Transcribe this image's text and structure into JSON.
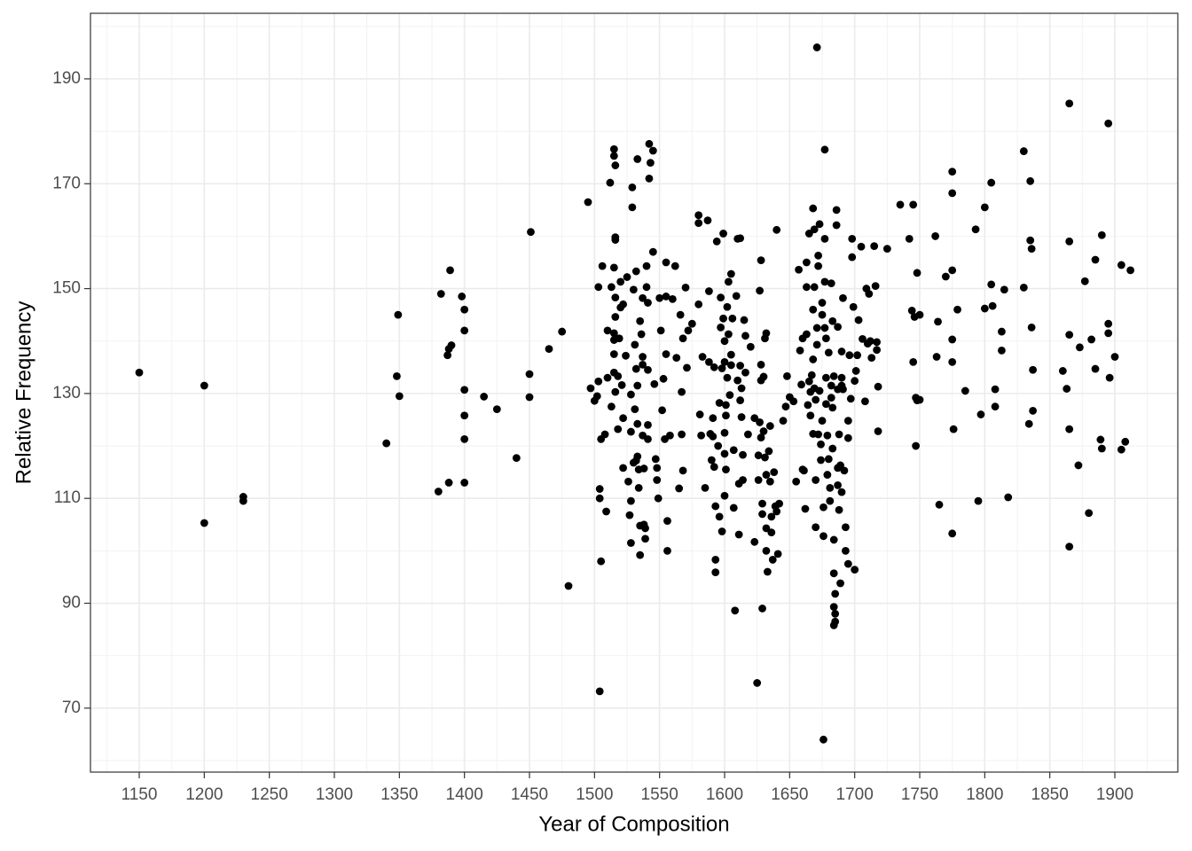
{
  "chart_data": {
    "type": "scatter",
    "x_label": "Year of Composition",
    "y_label": "Relative Frequency",
    "color": "#000000",
    "grid": true,
    "xlim": [
      1112.5,
      1948.4
    ],
    "ylim": [
      57.8,
      202.5
    ],
    "xticks": [
      1150,
      1200,
      1250,
      1300,
      1350,
      1400,
      1450,
      1500,
      1550,
      1600,
      1650,
      1700,
      1750,
      1800,
      1850,
      1900
    ],
    "yticks": [
      70,
      90,
      110,
      130,
      150,
      170,
      190
    ],
    "xminor": [
      1125,
      1175,
      1225,
      1275,
      1325,
      1375,
      1425,
      1475,
      1525,
      1575,
      1625,
      1675,
      1725,
      1775,
      1825,
      1875,
      1925
    ],
    "yminor": [
      60,
      80,
      100,
      120,
      140,
      160,
      180,
      200
    ],
    "x": [
      1150,
      1200,
      1200,
      1230,
      1230,
      1340,
      1348,
      1349,
      1350,
      1380,
      1382,
      1388,
      1387,
      1388,
      1389,
      1390,
      1398,
      1400,
      1400,
      1400,
      1400,
      1400,
      1400,
      1415,
      1425,
      1440,
      1450,
      1450,
      1451,
      1465,
      1475,
      1480,
      1495,
      1497,
      1500,
      1502,
      1503,
      1503,
      1504,
      1504,
      1505,
      1505,
      1504,
      1506,
      1508,
      1509,
      1510,
      1510,
      1512,
      1513,
      1513,
      1515,
      1515,
      1516,
      1516,
      1516,
      1515,
      1516,
      1516,
      1515,
      1515,
      1515,
      1515,
      1516,
      1518,
      1519,
      1518,
      1520,
      1520,
      1521,
      1522,
      1522,
      1522,
      1524,
      1525,
      1526,
      1527,
      1528,
      1528,
      1528,
      1528,
      1529,
      1529,
      1530,
      1530,
      1531,
      1531,
      1532,
      1532,
      1532,
      1533,
      1533,
      1533,
      1533,
      1534,
      1534,
      1535,
      1535,
      1535,
      1536,
      1537,
      1537,
      1537,
      1537,
      1538,
      1538,
      1539,
      1539,
      1540,
      1540,
      1541,
      1541,
      1541,
      1541,
      1542,
      1542,
      1543,
      1545,
      1545,
      1546,
      1547,
      1548,
      1548,
      1549,
      1550,
      1551,
      1552,
      1553,
      1554,
      1555,
      1555,
      1555,
      1556,
      1556,
      1558,
      1560,
      1562,
      1563,
      1565,
      1566,
      1567,
      1567,
      1568,
      1568,
      1570,
      1571,
      1572,
      1575,
      1580,
      1580,
      1580,
      1581,
      1582,
      1583,
      1585,
      1587,
      1588,
      1588,
      1589,
      1590,
      1591,
      1591,
      1592,
      1592,
      1593,
      1593,
      1593,
      1594,
      1595,
      1596,
      1596,
      1597,
      1597,
      1598,
      1598,
      1599,
      1599,
      1600,
      1600,
      1600,
      1600,
      1600,
      1601,
      1601,
      1601,
      1602,
      1602,
      1603,
      1603,
      1604,
      1605,
      1605,
      1605,
      1606,
      1607,
      1607,
      1608,
      1609,
      1610,
      1610,
      1611,
      1611,
      1612,
      1612,
      1612,
      1613,
      1613,
      1614,
      1614,
      1615,
      1616,
      1616,
      1618,
      1620,
      1623,
      1623,
      1625,
      1626,
      1626,
      1627,
      1627,
      1628,
      1628,
      1628,
      1628,
      1629,
      1629,
      1629,
      1630,
      1630,
      1631,
      1631,
      1632,
      1632,
      1632,
      1632,
      1633,
      1634,
      1635,
      1635,
      1636,
      1636,
      1637,
      1638,
      1639,
      1640,
      1640,
      1641,
      1642,
      1645,
      1647,
      1648,
      1650,
      1653,
      1655,
      1657,
      1658,
      1659,
      1660,
      1660,
      1661,
      1662,
      1663,
      1663,
      1663,
      1664,
      1665,
      1665,
      1666,
      1666,
      1667,
      1668,
      1668,
      1668,
      1668,
      1669,
      1669,
      1669,
      1670,
      1670,
      1670,
      1671,
      1671,
      1671,
      1672,
      1672,
      1672,
      1673,
      1673,
      1674,
      1674,
      1675,
      1675,
      1675,
      1676,
      1676,
      1676,
      1677,
      1677,
      1677,
      1677,
      1678,
      1678,
      1678,
      1679,
      1679,
      1680,
      1680,
      1681,
      1681,
      1682,
      1682,
      1682,
      1683,
      1683,
      1683,
      1684,
      1684,
      1684,
      1684,
      1684,
      1685,
      1685,
      1685,
      1686,
      1686,
      1687,
      1687,
      1687,
      1687,
      1688,
      1688,
      1689,
      1689,
      1690,
      1690,
      1690,
      1690,
      1691,
      1691,
      1692,
      1693,
      1693,
      1695,
      1695,
      1695,
      1696,
      1697,
      1698,
      1698,
      1699,
      1700,
      1700,
      1701,
      1702,
      1703,
      1705,
      1706,
      1708,
      1709,
      1710,
      1711,
      1712,
      1713,
      1715,
      1716,
      1717,
      1717,
      1718,
      1718,
      1725,
      1735,
      1742,
      1745,
      1744,
      1745,
      1746,
      1747,
      1747,
      1748,
      1748,
      1750,
      1750,
      1762,
      1763,
      1764,
      1765,
      1770,
      1775,
      1775,
      1775,
      1775,
      1775,
      1775,
      1776,
      1779,
      1785,
      1793,
      1795,
      1797,
      1800,
      1800,
      1805,
      1805,
      1806,
      1808,
      1808,
      1813,
      1813,
      1815,
      1818,
      1830,
      1830,
      1834,
      1835,
      1835,
      1836,
      1836,
      1837,
      1837,
      1860,
      1863,
      1865,
      1865,
      1865,
      1865,
      1865,
      1872,
      1873,
      1877,
      1880,
      1882,
      1885,
      1885,
      1889,
      1890,
      1890,
      1895,
      1895,
      1895,
      1896,
      1900,
      1905,
      1905,
      1908,
      1912
    ],
    "values": [
      134,
      131.5,
      105.3,
      110.3,
      109.5,
      120.5,
      133.3,
      145,
      129.5,
      111.3,
      149,
      113,
      137.3,
      138.5,
      153.5,
      139.2,
      148.5,
      146,
      142,
      130.7,
      125.8,
      121.3,
      113,
      129.4,
      127,
      117.7,
      133.7,
      129.3,
      160.8,
      138.5,
      141.8,
      93.3,
      166.5,
      131,
      128.6,
      129.5,
      132.3,
      150.3,
      111.8,
      110,
      98,
      121.3,
      73.2,
      154.3,
      122.2,
      107.5,
      133,
      142,
      170.2,
      150.3,
      127.5,
      176.6,
      175.3,
      173.5,
      159.8,
      159.3,
      154,
      148.3,
      144.6,
      141.5,
      140.2,
      137.5,
      134,
      130.3,
      133.3,
      140.5,
      123.2,
      146.4,
      151.3,
      131.6,
      115.8,
      125.3,
      147,
      137.2,
      152.2,
      113.2,
      106.8,
      109.5,
      122.7,
      129.8,
      101.5,
      165.5,
      169.3,
      149.8,
      116.8,
      139.3,
      127,
      153.3,
      134.7,
      117.2,
      174.7,
      131.5,
      124.2,
      118,
      115.5,
      112,
      104.8,
      99.2,
      143.8,
      141.3,
      148.2,
      137,
      135.5,
      122,
      115.7,
      105,
      102.3,
      104.3,
      154.3,
      150.3,
      147.3,
      134.5,
      124,
      121.3,
      171,
      177.6,
      174,
      176.3,
      157,
      131.8,
      117.5,
      115.8,
      113.5,
      110,
      148.2,
      142,
      126.8,
      132.8,
      121.3,
      155,
      148.5,
      137.5,
      105.7,
      100,
      122,
      148,
      154.3,
      136.8,
      111.9,
      145,
      130.3,
      122.2,
      115.3,
      140.5,
      150.2,
      134.9,
      142,
      143.3,
      162.5,
      164,
      147,
      126,
      122,
      137,
      112,
      163,
      149.5,
      136,
      122.3,
      117.3,
      125.3,
      121.8,
      135,
      116,
      98.3,
      108.5,
      95.9,
      159,
      120,
      106.5,
      128.2,
      142.6,
      148.3,
      134.8,
      103.7,
      160.5,
      144.3,
      140,
      136,
      122.5,
      118.5,
      110.5,
      127.8,
      125.8,
      115.5,
      146.5,
      133,
      151.3,
      141.3,
      129.7,
      152.8,
      137.4,
      135.4,
      144.3,
      119.2,
      108.2,
      88.6,
      148.6,
      159.5,
      132.5,
      112.8,
      103.1,
      159.6,
      135.3,
      128.7,
      131,
      125.5,
      118.3,
      113.5,
      144,
      141,
      134,
      122.2,
      138.9,
      125.3,
      101.7,
      74.8,
      118.2,
      113.5,
      124.5,
      149.6,
      155.4,
      135.5,
      132.5,
      121.6,
      109,
      107,
      89,
      133.2,
      122.8,
      140.5,
      117.8,
      141.5,
      114.5,
      104.3,
      100,
      96,
      119,
      123.8,
      113.2,
      106.5,
      103.5,
      98.3,
      115,
      108.5,
      161.2,
      107.5,
      99.4,
      109,
      124.8,
      127.5,
      133.3,
      129.3,
      128.5,
      113.2,
      153.6,
      138.2,
      131.7,
      140.5,
      115.5,
      115.3,
      108,
      150.3,
      155,
      141.3,
      127.8,
      132.3,
      160.5,
      130.3,
      125.8,
      133.5,
      165.3,
      146,
      136.5,
      122.3,
      150.3,
      161.3,
      131,
      128.8,
      113.5,
      104.5,
      196,
      142.5,
      139.3,
      156.3,
      154.3,
      122.2,
      162.3,
      130.5,
      120.3,
      117.3,
      147.3,
      145,
      124.8,
      64,
      108.3,
      102.8,
      176.5,
      159.5,
      151.3,
      142.5,
      140.5,
      133,
      128,
      122,
      114.5,
      137.8,
      117.5,
      112,
      109.5,
      151,
      131.5,
      129.2,
      143.8,
      127.3,
      119.5,
      133.3,
      102.1,
      95.7,
      89.3,
      85.8,
      91.8,
      88,
      86.5,
      162.1,
      165,
      142.7,
      130.8,
      115.8,
      112.5,
      107.8,
      122.2,
      93.8,
      116.3,
      138,
      133,
      131.5,
      111.2,
      148.2,
      130.8,
      115.3,
      100,
      104.5,
      97.5,
      121.5,
      124.8,
      137.3,
      129,
      159.5,
      156,
      146.5,
      96.4,
      132.4,
      134.3,
      137.3,
      144,
      158,
      140.4,
      128.5,
      150,
      139.5,
      149,
      140,
      136.8,
      158.1,
      150.5,
      139.8,
      138.3,
      122.8,
      131.3,
      157.6,
      166,
      159.5,
      166,
      145.8,
      136,
      144.6,
      120,
      129.2,
      153,
      128.7,
      145,
      128.8,
      160,
      137,
      143.7,
      108.8,
      152.3,
      168.2,
      172.3,
      153.5,
      140.3,
      136,
      103.3,
      123.2,
      146,
      130.5,
      161.3,
      109.5,
      126,
      165.5,
      146.2,
      170.2,
      150.8,
      146.7,
      130.8,
      127.5,
      141.8,
      138.2,
      149.8,
      110.2,
      176.2,
      150.2,
      124.2,
      170.5,
      159.2,
      157.6,
      142.6,
      134.5,
      126.7,
      134.3,
      130.9,
      185.3,
      159,
      141.2,
      123.2,
      100.8,
      116.3,
      138.8,
      151.4,
      107.2,
      140.3,
      134.7,
      155.5,
      121.2,
      119.5,
      160.2,
      181.5,
      143.3,
      141.5,
      133,
      137,
      154.5,
      119.3,
      120.8,
      153.5
    ]
  }
}
